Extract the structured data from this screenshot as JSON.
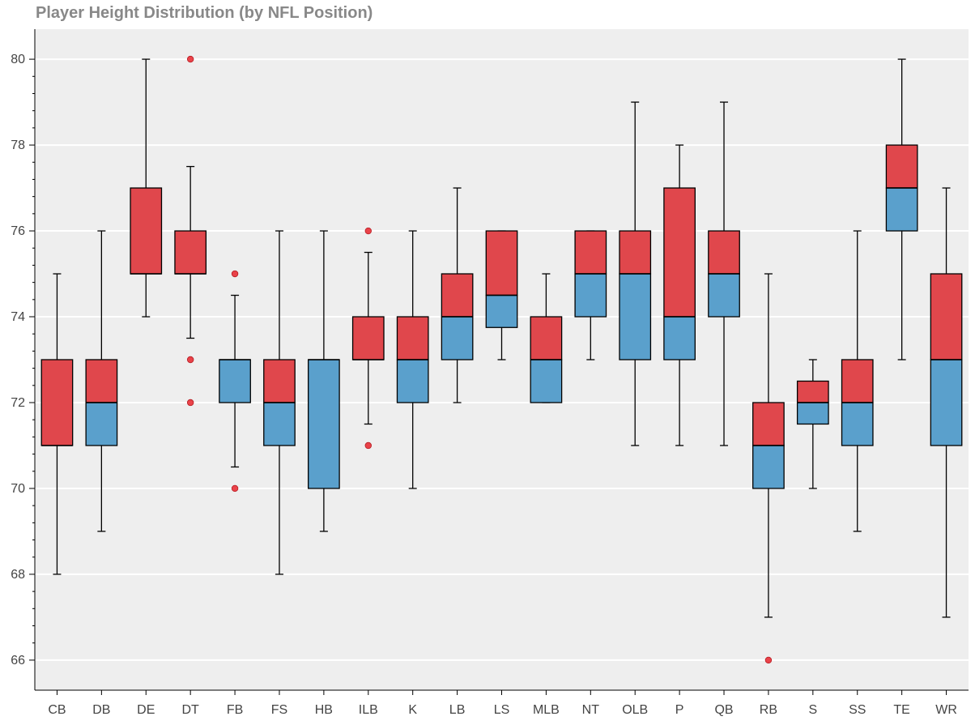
{
  "chart_data": {
    "type": "box",
    "title": "Player Height Distribution (by NFL Position)",
    "xlabel": "",
    "ylabel": "",
    "ylim": [
      65.3,
      80.7
    ],
    "yticks": [
      66,
      68,
      70,
      72,
      74,
      76,
      78,
      80
    ],
    "grid": "horizontal",
    "colors": {
      "upper_box": "#e0474c",
      "lower_box": "#5aa0cc",
      "outlier": "#e8232b",
      "background": "#eeeeee",
      "grid": "#ffffff"
    },
    "categories": [
      "CB",
      "DB",
      "DE",
      "DT",
      "FB",
      "FS",
      "HB",
      "ILB",
      "K",
      "LB",
      "LS",
      "MLB",
      "NT",
      "OLB",
      "P",
      "QB",
      "RB",
      "S",
      "SS",
      "TE",
      "WR"
    ],
    "boxes": [
      {
        "name": "CB",
        "lower_whisker": 68,
        "q1": 71,
        "median": 71,
        "q3": 73,
        "upper_whisker": 75,
        "outliers": []
      },
      {
        "name": "DB",
        "lower_whisker": 69,
        "q1": 71,
        "median": 72,
        "q3": 73,
        "upper_whisker": 76,
        "outliers": []
      },
      {
        "name": "DE",
        "lower_whisker": 74,
        "q1": 75,
        "median": 75,
        "q3": 77,
        "upper_whisker": 80,
        "outliers": []
      },
      {
        "name": "DT",
        "lower_whisker": 73.5,
        "q1": 75,
        "median": 75,
        "q3": 76,
        "upper_whisker": 77.5,
        "outliers": [
          80,
          73,
          72
        ]
      },
      {
        "name": "FB",
        "lower_whisker": 70.5,
        "q1": 72,
        "median": 73,
        "q3": 73,
        "upper_whisker": 74.5,
        "outliers": [
          75,
          70
        ]
      },
      {
        "name": "FS",
        "lower_whisker": 68,
        "q1": 71,
        "median": 72,
        "q3": 73,
        "upper_whisker": 76,
        "outliers": []
      },
      {
        "name": "HB",
        "lower_whisker": 69,
        "q1": 70,
        "median": 73,
        "q3": 73,
        "upper_whisker": 76,
        "outliers": []
      },
      {
        "name": "ILB",
        "lower_whisker": 71.5,
        "q1": 73,
        "median": 73,
        "q3": 74,
        "upper_whisker": 75.5,
        "outliers": [
          76,
          71
        ]
      },
      {
        "name": "K",
        "lower_whisker": 70,
        "q1": 72,
        "median": 73,
        "q3": 74,
        "upper_whisker": 76,
        "outliers": []
      },
      {
        "name": "LB",
        "lower_whisker": 72,
        "q1": 73,
        "median": 74,
        "q3": 75,
        "upper_whisker": 77,
        "outliers": []
      },
      {
        "name": "LS",
        "lower_whisker": 73,
        "q1": 73.75,
        "median": 74.5,
        "q3": 76,
        "upper_whisker": 76,
        "outliers": []
      },
      {
        "name": "MLB",
        "lower_whisker": 72,
        "q1": 72,
        "median": 73,
        "q3": 74,
        "upper_whisker": 75,
        "outliers": []
      },
      {
        "name": "NT",
        "lower_whisker": 73,
        "q1": 74,
        "median": 75,
        "q3": 76,
        "upper_whisker": 76,
        "outliers": []
      },
      {
        "name": "OLB",
        "lower_whisker": 71,
        "q1": 73,
        "median": 75,
        "q3": 76,
        "upper_whisker": 79,
        "outliers": []
      },
      {
        "name": "P",
        "lower_whisker": 71,
        "q1": 73,
        "median": 74,
        "q3": 77,
        "upper_whisker": 78,
        "outliers": []
      },
      {
        "name": "QB",
        "lower_whisker": 71,
        "q1": 74,
        "median": 75,
        "q3": 76,
        "upper_whisker": 79,
        "outliers": []
      },
      {
        "name": "RB",
        "lower_whisker": 67,
        "q1": 70,
        "median": 71,
        "q3": 72,
        "upper_whisker": 75,
        "outliers": [
          66
        ]
      },
      {
        "name": "S",
        "lower_whisker": 70,
        "q1": 71.5,
        "median": 72,
        "q3": 72.5,
        "upper_whisker": 73,
        "outliers": []
      },
      {
        "name": "SS",
        "lower_whisker": 69,
        "q1": 71,
        "median": 72,
        "q3": 73,
        "upper_whisker": 76,
        "outliers": []
      },
      {
        "name": "TE",
        "lower_whisker": 73,
        "q1": 76,
        "median": 77,
        "q3": 78,
        "upper_whisker": 80,
        "outliers": []
      },
      {
        "name": "WR",
        "lower_whisker": 67,
        "q1": 71,
        "median": 73,
        "q3": 75,
        "upper_whisker": 77,
        "outliers": []
      }
    ]
  }
}
